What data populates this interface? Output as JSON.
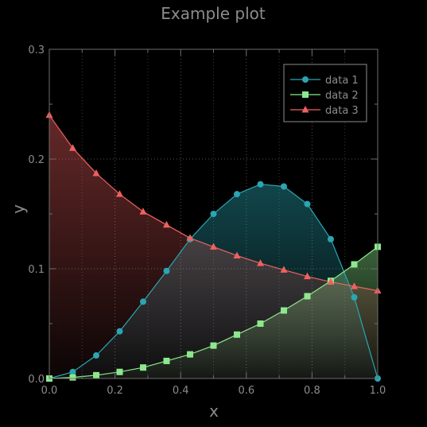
{
  "chart_data": {
    "type": "line",
    "title": "Example plot",
    "xlabel": "x",
    "ylabel": "y",
    "xlim": [
      0,
      1
    ],
    "ylim": [
      0,
      0.3
    ],
    "xticks": [
      "0.0",
      "0.2",
      "0.4",
      "0.6",
      "0.8",
      "1.0"
    ],
    "yticks": [
      "0.0",
      "0.1",
      "0.2",
      "0.3"
    ],
    "grid": true,
    "legend_position": "top-right",
    "x": [
      0,
      0.0714,
      0.1429,
      0.2143,
      0.2857,
      0.3571,
      0.4286,
      0.5,
      0.5714,
      0.6429,
      0.7143,
      0.7857,
      0.8571,
      0.9286,
      1.0
    ],
    "series": [
      {
        "name": "data 1",
        "marker": "circle",
        "color": "#2aa6b2",
        "values": [
          0,
          0.006,
          0.021,
          0.043,
          0.07,
          0.098,
          0.127,
          0.15,
          0.168,
          0.177,
          0.175,
          0.159,
          0.127,
          0.074,
          0
        ]
      },
      {
        "name": "data 2",
        "marker": "square",
        "color": "#8de88d",
        "values": [
          0,
          0.001,
          0.003,
          0.006,
          0.01,
          0.016,
          0.022,
          0.03,
          0.04,
          0.05,
          0.062,
          0.075,
          0.089,
          0.104,
          0.12
        ]
      },
      {
        "name": "data 3",
        "marker": "triangle",
        "color": "#f06060",
        "values": [
          0.24,
          0.21,
          0.187,
          0.168,
          0.152,
          0.14,
          0.128,
          0.12,
          0.112,
          0.105,
          0.099,
          0.093,
          0.088,
          0.084,
          0.08
        ]
      }
    ]
  }
}
